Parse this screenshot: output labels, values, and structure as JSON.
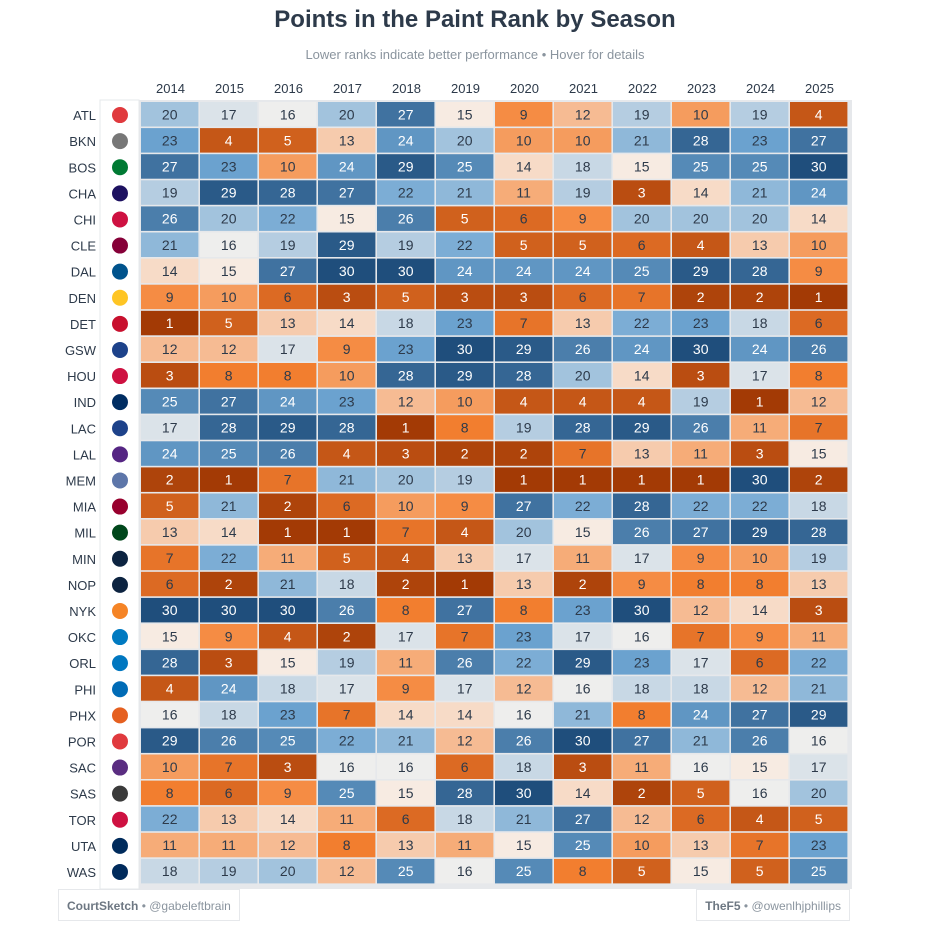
{
  "chart_data": {
    "type": "heatmap",
    "title": "Points in the Paint Rank by Season",
    "subtitle": "Lower ranks indicate better performance • Hover for details",
    "x": [
      "2014",
      "2015",
      "2016",
      "2017",
      "2018",
      "2019",
      "2020",
      "2021",
      "2022",
      "2023",
      "2024",
      "2025"
    ],
    "y": [
      "ATL",
      "BKN",
      "BOS",
      "CHA",
      "CHI",
      "CLE",
      "DAL",
      "DEN",
      "DET",
      "GSW",
      "HOU",
      "IND",
      "LAC",
      "LAL",
      "MEM",
      "MIA",
      "MIL",
      "MIN",
      "NOP",
      "NYK",
      "OKC",
      "ORL",
      "PHI",
      "PHX",
      "POR",
      "SAC",
      "SAS",
      "TOR",
      "UTA",
      "WAS"
    ],
    "values": [
      [
        20,
        17,
        16,
        20,
        27,
        15,
        9,
        12,
        19,
        10,
        19,
        4
      ],
      [
        23,
        4,
        5,
        13,
        24,
        20,
        10,
        10,
        21,
        28,
        23,
        27
      ],
      [
        27,
        23,
        10,
        24,
        29,
        25,
        14,
        18,
        15,
        25,
        25,
        30
      ],
      [
        19,
        29,
        28,
        27,
        22,
        21,
        11,
        19,
        3,
        14,
        21,
        24
      ],
      [
        26,
        20,
        22,
        15,
        26,
        5,
        6,
        9,
        20,
        20,
        20,
        14
      ],
      [
        21,
        16,
        19,
        29,
        19,
        22,
        5,
        5,
        6,
        4,
        13,
        10
      ],
      [
        14,
        15,
        27,
        30,
        30,
        24,
        24,
        24,
        25,
        29,
        28,
        9
      ],
      [
        9,
        10,
        6,
        3,
        5,
        3,
        3,
        6,
        7,
        2,
        2,
        1
      ],
      [
        1,
        5,
        13,
        14,
        18,
        23,
        7,
        13,
        22,
        23,
        18,
        6
      ],
      [
        12,
        12,
        17,
        9,
        23,
        30,
        29,
        26,
        24,
        30,
        24,
        26
      ],
      [
        3,
        8,
        8,
        10,
        28,
        29,
        28,
        20,
        14,
        3,
        17,
        8
      ],
      [
        25,
        27,
        24,
        23,
        12,
        10,
        4,
        4,
        4,
        19,
        1,
        12
      ],
      [
        17,
        28,
        29,
        28,
        1,
        8,
        19,
        28,
        29,
        26,
        11,
        7
      ],
      [
        24,
        25,
        26,
        4,
        3,
        2,
        2,
        7,
        13,
        11,
        3,
        15
      ],
      [
        2,
        1,
        7,
        21,
        20,
        19,
        1,
        1,
        1,
        1,
        30,
        2
      ],
      [
        5,
        21,
        2,
        6,
        10,
        9,
        27,
        22,
        28,
        22,
        22,
        18
      ],
      [
        13,
        14,
        1,
        1,
        7,
        4,
        20,
        15,
        26,
        27,
        29,
        28
      ],
      [
        7,
        22,
        11,
        5,
        4,
        13,
        17,
        11,
        17,
        9,
        10,
        19
      ],
      [
        6,
        2,
        21,
        18,
        2,
        1,
        13,
        2,
        9,
        8,
        8,
        13
      ],
      [
        30,
        30,
        30,
        26,
        8,
        27,
        8,
        23,
        30,
        12,
        14,
        3
      ],
      [
        15,
        9,
        4,
        2,
        17,
        7,
        23,
        17,
        16,
        7,
        9,
        11
      ],
      [
        28,
        3,
        15,
        19,
        11,
        26,
        22,
        29,
        23,
        17,
        6,
        22
      ],
      [
        4,
        24,
        18,
        17,
        9,
        17,
        12,
        16,
        18,
        18,
        12,
        21
      ],
      [
        16,
        18,
        23,
        7,
        14,
        14,
        16,
        21,
        8,
        24,
        27,
        29
      ],
      [
        29,
        26,
        25,
        22,
        21,
        12,
        26,
        30,
        27,
        21,
        26,
        16
      ],
      [
        10,
        7,
        3,
        16,
        16,
        6,
        18,
        3,
        11,
        16,
        15,
        17
      ],
      [
        8,
        6,
        9,
        25,
        15,
        28,
        30,
        14,
        2,
        5,
        16,
        20
      ],
      [
        22,
        13,
        14,
        11,
        6,
        18,
        21,
        27,
        12,
        6,
        4,
        5
      ],
      [
        11,
        11,
        12,
        8,
        13,
        11,
        15,
        25,
        10,
        13,
        7,
        23
      ],
      [
        18,
        19,
        20,
        12,
        25,
        16,
        25,
        8,
        5,
        15,
        5,
        25
      ]
    ],
    "scale": {
      "min": 1,
      "max": 30,
      "low_color": "#a33a05",
      "mid_color": "#f7f3ef",
      "high_color": "#1f4e7c"
    }
  },
  "team_logos": [
    {
      "name": "atl",
      "color": "#e03a3e",
      "glyph": "◆"
    },
    {
      "name": "bkn",
      "color": "#777777",
      "glyph": "B"
    },
    {
      "name": "bos",
      "color": "#007a33",
      "glyph": "☘"
    },
    {
      "name": "cha",
      "color": "#1d1160",
      "glyph": "✦"
    },
    {
      "name": "chi",
      "color": "#ce1141",
      "glyph": "♉"
    },
    {
      "name": "cle",
      "color": "#860038",
      "glyph": "C"
    },
    {
      "name": "dal",
      "color": "#00538c",
      "glyph": "◆"
    },
    {
      "name": "den",
      "color": "#fec524",
      "glyph": "▲"
    },
    {
      "name": "det",
      "color": "#c8102e",
      "glyph": "◎"
    },
    {
      "name": "gsw",
      "color": "#1d428a",
      "glyph": "◉"
    },
    {
      "name": "hou",
      "color": "#ce1141",
      "glyph": "R"
    },
    {
      "name": "ind",
      "color": "#002d62",
      "glyph": "P"
    },
    {
      "name": "lac",
      "color": "#1d428a",
      "glyph": "◎"
    },
    {
      "name": "lal",
      "color": "#552583",
      "glyph": "━"
    },
    {
      "name": "mem",
      "color": "#5d76a9",
      "glyph": "▼"
    },
    {
      "name": "mia",
      "color": "#98002e",
      "glyph": "▲"
    },
    {
      "name": "mil",
      "color": "#00471b",
      "glyph": "♆"
    },
    {
      "name": "min",
      "color": "#0c2340",
      "glyph": "◆"
    },
    {
      "name": "nop",
      "color": "#0c2340",
      "glyph": "◆"
    },
    {
      "name": "nyk",
      "color": "#f58426",
      "glyph": "◉"
    },
    {
      "name": "okc",
      "color": "#007ac1",
      "glyph": "◉"
    },
    {
      "name": "orl",
      "color": "#0077c0",
      "glyph": "◉"
    },
    {
      "name": "phi",
      "color": "#006bb6",
      "glyph": "76"
    },
    {
      "name": "phx",
      "color": "#e56020",
      "glyph": "☀"
    },
    {
      "name": "por",
      "color": "#e03a3e",
      "glyph": "◆"
    },
    {
      "name": "sac",
      "color": "#5a2d81",
      "glyph": "K"
    },
    {
      "name": "sas",
      "color": "#3a3a3a",
      "glyph": "✶"
    },
    {
      "name": "tor",
      "color": "#ce1141",
      "glyph": "◉"
    },
    {
      "name": "uta",
      "color": "#002b5c",
      "glyph": "J"
    },
    {
      "name": "was",
      "color": "#002b5c",
      "glyph": "◉"
    }
  ],
  "credits": {
    "left_brand": "CourtSketch",
    "left_handle": "@gabeleftbrain",
    "right_brand": "TheF5",
    "right_handle": "@owenlhjphillips",
    "separator": "•"
  }
}
